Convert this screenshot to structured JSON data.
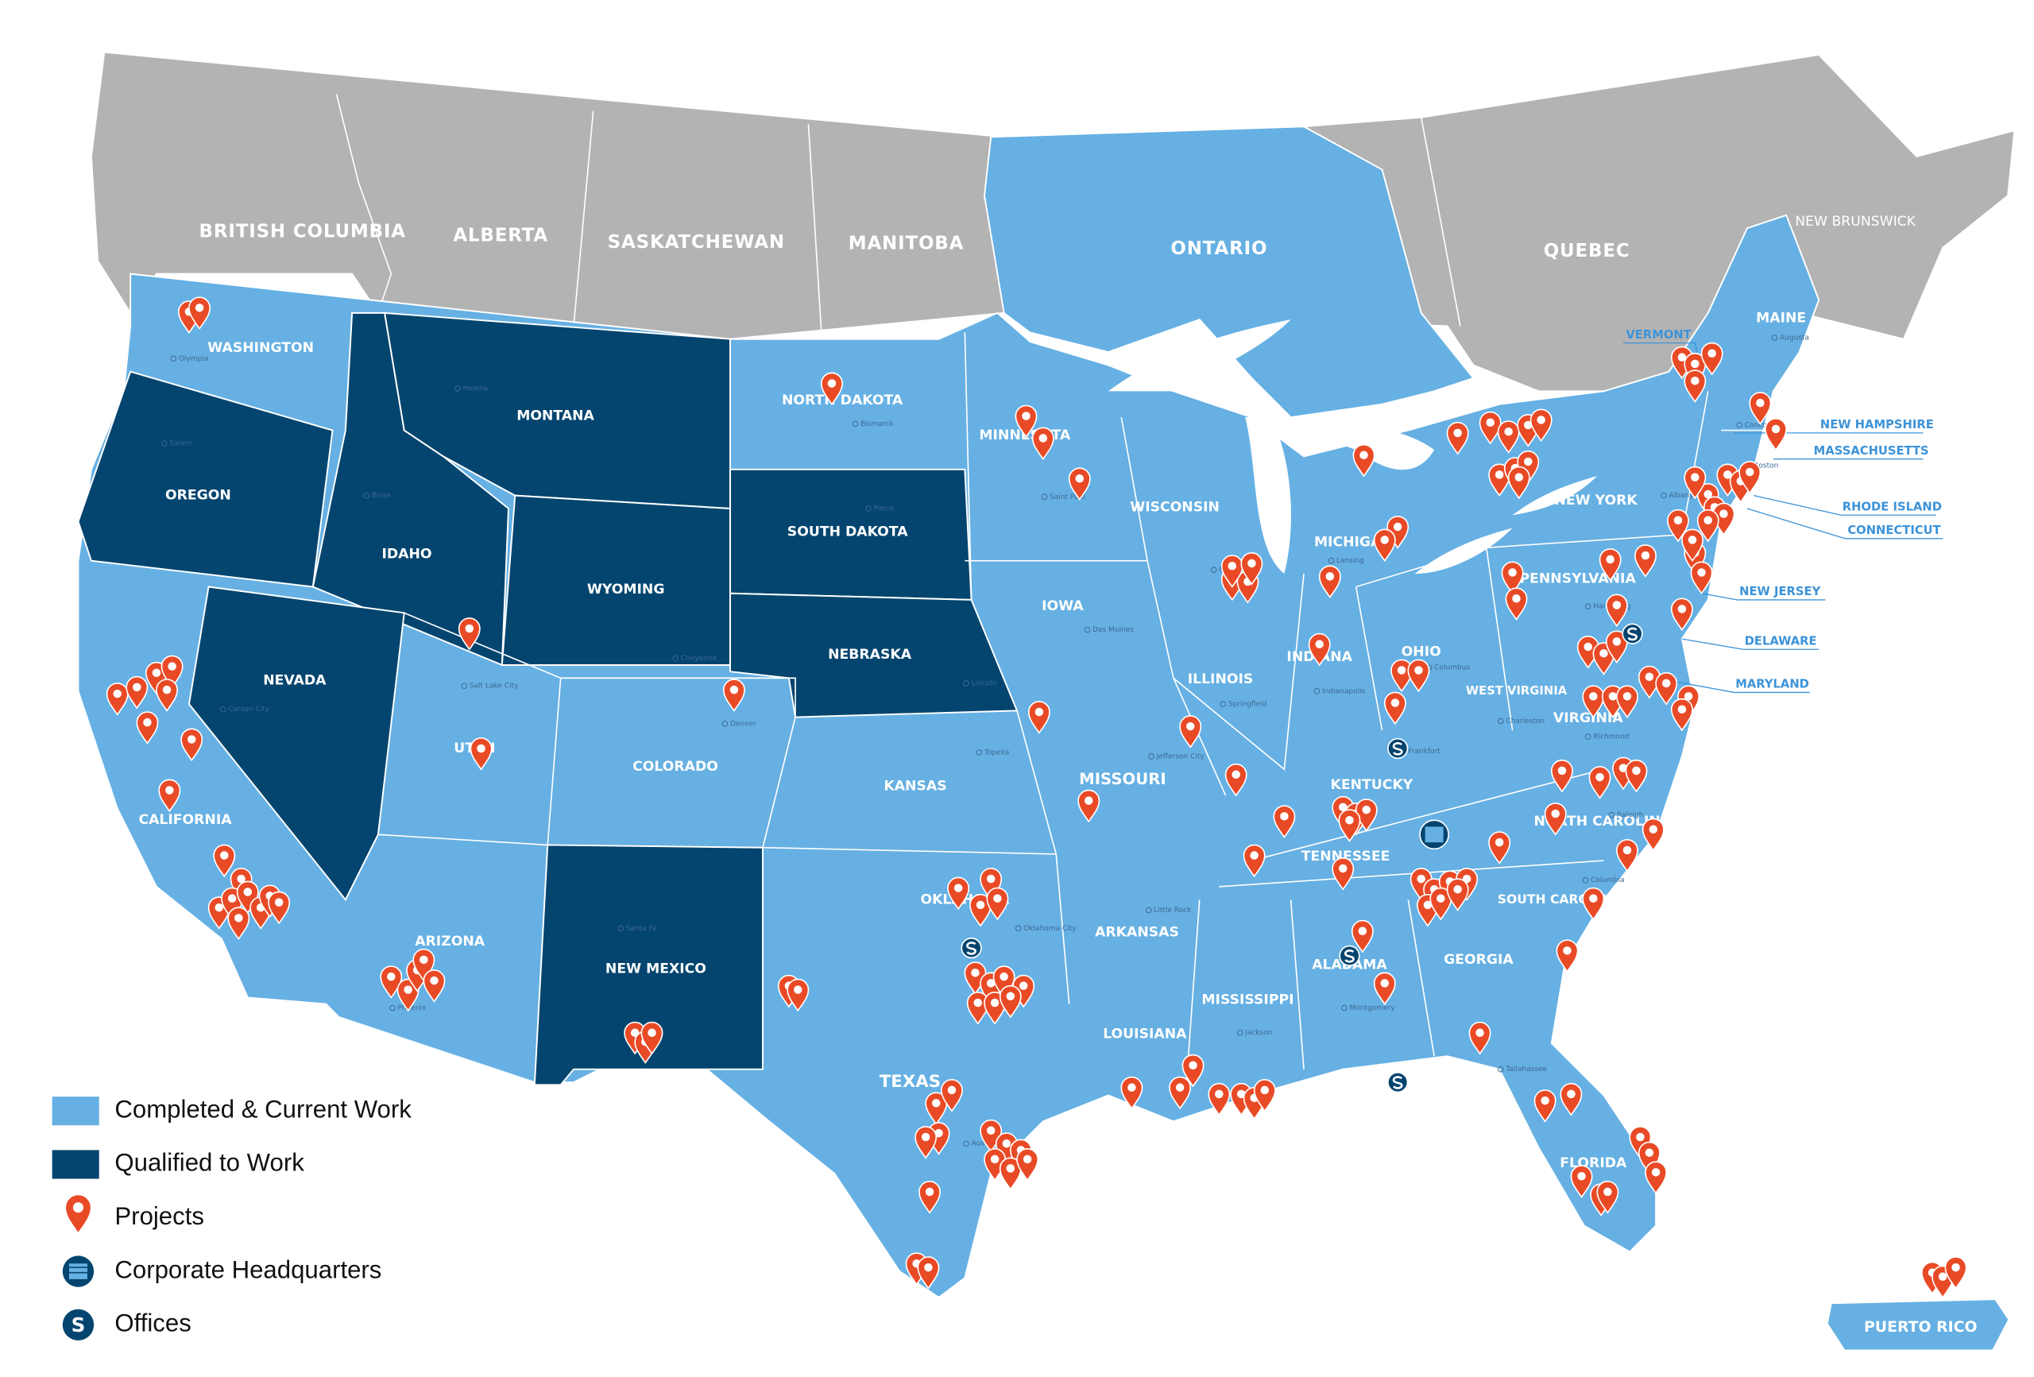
{
  "regions": {
    "canada": [
      "BRITISH COLUMBIA",
      "ALBERTA",
      "SASKATCHEWAN",
      "MANITOBA",
      "ONTARIO",
      "QUEBEC",
      "NEW BRUNSWICK"
    ],
    "states": [
      "WASHINGTON",
      "OREGON",
      "IDAHO",
      "MONTANA",
      "WYOMING",
      "SOUTH DAKOTA",
      "NORTH DAKOTA",
      "NEBRASKA",
      "NEVADA",
      "UTAH",
      "COLORADO",
      "KANSAS",
      "CALIFORNIA",
      "ARIZONA",
      "NEW MEXICO",
      "OKLAHOMA",
      "TEXAS",
      "MINNESOTA",
      "IOWA",
      "MISSOURI",
      "ARKANSAS",
      "LOUISIANA",
      "WISCONSIN",
      "ILLINOIS",
      "MICHIGAN",
      "INDIANA",
      "OHIO",
      "KENTUCKY",
      "TENNESSEE",
      "MISSISSIPPI",
      "ALABAMA",
      "GEORGIA",
      "FLORIDA",
      "SOUTH CAROLINA",
      "NORTH CAROLINA",
      "VIRGINIA",
      "WEST VIRGINIA",
      "PENNSYLVANIA",
      "NEW YORK",
      "MAINE",
      "PUERTO RICO"
    ],
    "small_states": [
      "VERMONT",
      "NEW HAMPSHIRE",
      "MASSACHUSETTS",
      "RHODE ISLAND",
      "CONNECTICUT",
      "NEW JERSEY",
      "DELAWARE",
      "MARYLAND"
    ]
  },
  "capitals": [
    "Olympia",
    "Helena",
    "Boise",
    "Salem",
    "Bismarck",
    "Pierre",
    "Cheyenne",
    "Lincoln",
    "Carson City",
    "Salt Lake City",
    "Denver",
    "Topeka",
    "Santa Fe",
    "Phoenix",
    "Oklahoma City",
    "Austin",
    "Saint Paul",
    "Des Moines",
    "Madison",
    "Springfield",
    "Jefferson City",
    "Little Rock",
    "Jackson",
    "Montgomery",
    "Tallahassee",
    "Columbia",
    "Raleigh",
    "Richmond",
    "Charleston",
    "Columbus",
    "Indianapolis",
    "Lansing",
    "Frankfort",
    "Harrisburg",
    "Albany",
    "Concord",
    "Boston",
    "Augusta"
  ],
  "legend": [
    "Completed & Current Work",
    "Qualified to Work",
    "Projects",
    "Corporate Headquarters",
    "Offices"
  ]
}
